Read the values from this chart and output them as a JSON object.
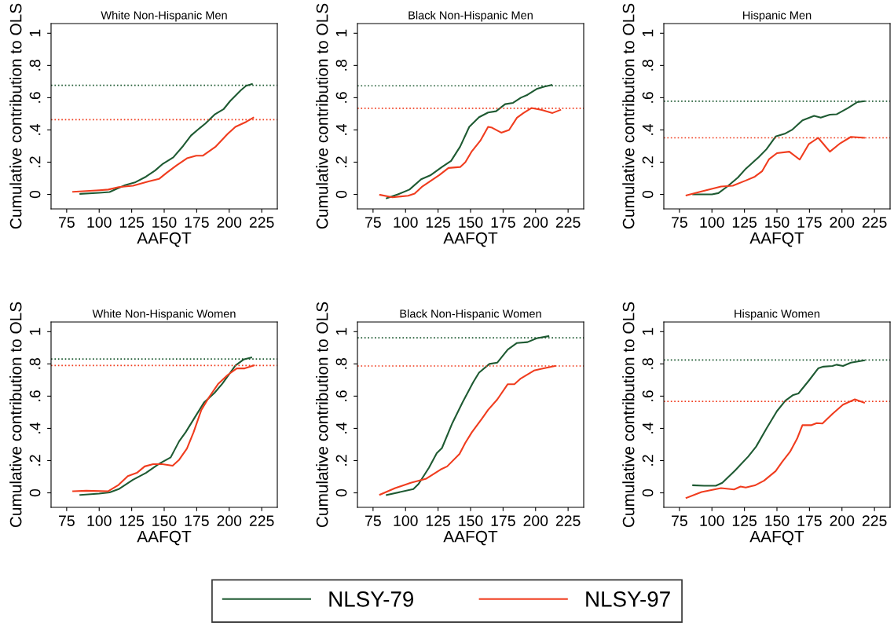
{
  "chart_data": [
    {
      "type": "line",
      "legend": "bottom",
      "title": "White Non-Hispanic Men",
      "xlabel": "AAFQT",
      "ylabel": "Cumulative contribution to OLS",
      "xlim": [
        63,
        237
      ],
      "ylim": [
        -0.09,
        1.06
      ],
      "xticks": [
        75,
        100,
        125,
        150,
        175,
        200,
        225
      ],
      "yticks": [
        {
          "value": 0,
          "label": "0"
        },
        {
          "value": 0.2,
          "label": ".2"
        },
        {
          "value": 0.4,
          "label": ".4"
        },
        {
          "value": 0.6,
          "label": ".6"
        },
        {
          "value": 0.8,
          "label": ".8"
        },
        {
          "value": 1,
          "label": "1"
        }
      ],
      "grid": false,
      "series": [
        {
          "name": "NLSY-79",
          "color": "#1e5a32",
          "x": [
            85.5,
            100,
            108,
            114,
            120,
            128,
            136,
            143,
            149,
            157,
            164.5,
            170.6,
            175.6,
            181.7,
            188.7,
            195.8,
            200.8,
            208.9,
            213,
            217.5
          ],
          "values": [
            0.003,
            0.01,
            0.015,
            0.037,
            0.057,
            0.076,
            0.11,
            0.148,
            0.19,
            0.23,
            0.3,
            0.365,
            0.4,
            0.44,
            0.495,
            0.53,
            0.58,
            0.646,
            0.674,
            0.685
          ]
        },
        {
          "name": "NLSY-97",
          "color": "#f03c1e",
          "x": [
            80,
            100,
            107,
            115,
            126,
            138,
            146,
            152,
            159.5,
            167.5,
            174.6,
            179.6,
            189.7,
            198.8,
            204.8,
            213,
            218.5
          ],
          "values": [
            0.016,
            0.026,
            0.03,
            0.045,
            0.054,
            0.08,
            0.096,
            0.135,
            0.18,
            0.224,
            0.24,
            0.24,
            0.297,
            0.375,
            0.419,
            0.45,
            0.476
          ]
        }
      ],
      "ref_lines": [
        {
          "axis": "y",
          "value": 0.677,
          "color": "#1e5a32",
          "line_style": "dotted"
        },
        {
          "axis": "y",
          "value": 0.464,
          "color": "#f03c1e",
          "line_style": "dotted"
        }
      ]
    },
    {
      "type": "line",
      "legend": "bottom",
      "title": "Black Non-Hispanic Men",
      "xlabel": "AAFQT",
      "ylabel": "Cumulative contribution to OLS",
      "xlim": [
        63,
        237
      ],
      "ylim": [
        -0.09,
        1.06
      ],
      "xticks": [
        75,
        100,
        125,
        150,
        175,
        200,
        225
      ],
      "yticks": [
        {
          "value": 0,
          "label": "0"
        },
        {
          "value": 0.2,
          "label": ".2"
        },
        {
          "value": 0.4,
          "label": ".4"
        },
        {
          "value": 0.6,
          "label": ".6"
        },
        {
          "value": 0.8,
          "label": ".8"
        },
        {
          "value": 1,
          "label": "1"
        }
      ],
      "grid": false,
      "series": [
        {
          "name": "NLSY-79",
          "color": "#1e5a32",
          "x": [
            85.5,
            94,
            103,
            112,
            119,
            128,
            135,
            142,
            149,
            156.5,
            163.5,
            169.6,
            176.6,
            182.7,
            188.7,
            193.8,
            200.8,
            206.9,
            212.3
          ],
          "values": [
            -0.024,
            0.0,
            0.03,
            0.094,
            0.118,
            0.17,
            0.208,
            0.297,
            0.419,
            0.479,
            0.508,
            0.516,
            0.56,
            0.568,
            0.6,
            0.618,
            0.654,
            0.669,
            0.679
          ]
        },
        {
          "name": "NLSY-97",
          "color": "#f03c1e",
          "x": [
            80.4,
            90,
            102,
            107,
            113,
            126,
            133,
            142,
            146,
            151,
            157.5,
            163.5,
            166.5,
            173.6,
            179.6,
            185.7,
            190.7,
            196.8,
            204.8,
            213,
            219
          ],
          "values": [
            -0.003,
            -0.018,
            -0.008,
            0.005,
            0.05,
            0.12,
            0.164,
            0.17,
            0.2,
            0.268,
            0.333,
            0.419,
            0.414,
            0.383,
            0.4,
            0.476,
            0.505,
            0.536,
            0.524,
            0.505,
            0.524
          ]
        }
      ],
      "ref_lines": [
        {
          "axis": "y",
          "value": 0.674,
          "color": "#1e5a32",
          "line_style": "dotted"
        },
        {
          "axis": "y",
          "value": 0.534,
          "color": "#f03c1e",
          "line_style": "dotted"
        }
      ]
    },
    {
      "type": "line",
      "legend": "bottom",
      "title": "Hispanic Men",
      "xlabel": "AAFQT",
      "ylabel": "Cumulative contribution to OLS",
      "xlim": [
        63,
        237
      ],
      "ylim": [
        -0.09,
        1.06
      ],
      "xticks": [
        75,
        100,
        125,
        150,
        175,
        200,
        225
      ],
      "yticks": [
        {
          "value": 0,
          "label": "0"
        },
        {
          "value": 0.2,
          "label": ".2"
        },
        {
          "value": 0.4,
          "label": ".4"
        },
        {
          "value": 0.6,
          "label": ".6"
        },
        {
          "value": 0.8,
          "label": ".8"
        },
        {
          "value": 1,
          "label": "1"
        }
      ],
      "grid": false,
      "series": [
        {
          "name": "NLSY-79",
          "color": "#1e5a32",
          "x": [
            85.5,
            100,
            105,
            112,
            120,
            126,
            136,
            142,
            149,
            156.5,
            161.5,
            169.6,
            178.6,
            183.7,
            190.7,
            195.8,
            204.8,
            211.9,
            217
          ],
          "values": [
            0.0,
            0.0,
            0.008,
            0.05,
            0.105,
            0.159,
            0.232,
            0.281,
            0.359,
            0.378,
            0.4,
            0.459,
            0.487,
            0.476,
            0.495,
            0.497,
            0.537,
            0.573,
            0.578
          ]
        },
        {
          "name": "NLSY-97",
          "color": "#f03c1e",
          "x": [
            80.4,
            92,
            107,
            116,
            126,
            133,
            138.5,
            144,
            150,
            159.5,
            167.5,
            174.6,
            181.7,
            185.7,
            190.7,
            198.8,
            206.9,
            217
          ],
          "values": [
            -0.006,
            0.018,
            0.049,
            0.054,
            0.086,
            0.11,
            0.143,
            0.219,
            0.256,
            0.265,
            0.216,
            0.313,
            0.351,
            0.313,
            0.265,
            0.318,
            0.357,
            0.351
          ]
        }
      ],
      "ref_lines": [
        {
          "axis": "y",
          "value": 0.578,
          "color": "#1e5a32",
          "line_style": "dotted"
        },
        {
          "axis": "y",
          "value": 0.351,
          "color": "#f03c1e",
          "line_style": "dotted"
        }
      ]
    },
    {
      "type": "line",
      "legend": "bottom",
      "title": "White Non-Hispanic Women",
      "xlabel": "AAFQT",
      "ylabel": "Cumulative contribution to OLS",
      "xlim": [
        63,
        237
      ],
      "ylim": [
        -0.09,
        1.06
      ],
      "xticks": [
        75,
        100,
        125,
        150,
        175,
        200,
        225
      ],
      "yticks": [
        {
          "value": 0,
          "label": "0"
        },
        {
          "value": 0.2,
          "label": ".2"
        },
        {
          "value": 0.4,
          "label": ".4"
        },
        {
          "value": 0.6,
          "label": ".6"
        },
        {
          "value": 0.8,
          "label": ".8"
        },
        {
          "value": 1,
          "label": "1"
        }
      ],
      "grid": false,
      "series": [
        {
          "name": "NLSY-79",
          "color": "#1e5a32",
          "x": [
            85.5,
            100,
            108,
            115,
            126,
            136,
            146,
            155,
            161.5,
            166.5,
            174.6,
            180.6,
            188.7,
            194.8,
            204.8,
            211,
            217
          ],
          "values": [
            -0.013,
            -0.005,
            0.003,
            0.023,
            0.081,
            0.124,
            0.18,
            0.22,
            0.32,
            0.376,
            0.482,
            0.56,
            0.62,
            0.678,
            0.79,
            0.827,
            0.839
          ]
        },
        {
          "name": "NLSY-97",
          "color": "#f03c1e",
          "x": [
            80,
            90,
            107,
            115,
            122,
            129,
            135,
            141.5,
            148.6,
            156.5,
            161.5,
            167.5,
            172.6,
            178.6,
            184.7,
            191.7,
            198.8,
            205.8,
            211.9,
            219
          ],
          "values": [
            0.01,
            0.013,
            0.01,
            0.05,
            0.104,
            0.124,
            0.164,
            0.178,
            0.178,
            0.168,
            0.205,
            0.275,
            0.376,
            0.515,
            0.596,
            0.678,
            0.731,
            0.772,
            0.772,
            0.79
          ]
        }
      ],
      "ref_lines": [
        {
          "axis": "y",
          "value": 0.83,
          "color": "#1e5a32",
          "line_style": "dotted"
        },
        {
          "axis": "y",
          "value": 0.79,
          "color": "#f03c1e",
          "line_style": "dotted"
        }
      ]
    },
    {
      "type": "line",
      "legend": "bottom",
      "title": "Black Non-Hispanic Women",
      "xlabel": "AAFQT",
      "ylabel": "Cumulative contribution to OLS",
      "xlim": [
        63,
        237
      ],
      "ylim": [
        -0.09,
        1.06
      ],
      "xticks": [
        75,
        100,
        125,
        150,
        175,
        200,
        225
      ],
      "yticks": [
        {
          "value": 0,
          "label": "0"
        },
        {
          "value": 0.2,
          "label": ".2"
        },
        {
          "value": 0.4,
          "label": ".4"
        },
        {
          "value": 0.6,
          "label": ".6"
        },
        {
          "value": 0.8,
          "label": ".8"
        },
        {
          "value": 1,
          "label": "1"
        }
      ],
      "grid": false,
      "series": [
        {
          "name": "NLSY-79",
          "color": "#1e5a32",
          "x": [
            85.5,
            106,
            110,
            118,
            124,
            128,
            136,
            144,
            152,
            156.5,
            164.5,
            170.6,
            178.6,
            185.7,
            193.8,
            200.8,
            209.9
          ],
          "values": [
            -0.013,
            0.023,
            0.055,
            0.156,
            0.246,
            0.278,
            0.433,
            0.564,
            0.686,
            0.746,
            0.8,
            0.808,
            0.889,
            0.93,
            0.935,
            0.959,
            0.972
          ]
        },
        {
          "name": "NLSY-97",
          "color": "#f03c1e",
          "x": [
            80.4,
            92,
            104,
            116,
            127,
            132,
            141.5,
            146,
            151,
            158.5,
            163.5,
            170.6,
            178.6,
            183.7,
            188.7,
            198.8,
            204.8,
            215
          ],
          "values": [
            -0.011,
            0.029,
            0.062,
            0.088,
            0.145,
            0.164,
            0.241,
            0.311,
            0.376,
            0.458,
            0.515,
            0.58,
            0.674,
            0.674,
            0.71,
            0.759,
            0.77,
            0.787
          ]
        }
      ],
      "ref_lines": [
        {
          "axis": "y",
          "value": 0.962,
          "color": "#1e5a32",
          "line_style": "dotted"
        },
        {
          "axis": "y",
          "value": 0.787,
          "color": "#f03c1e",
          "line_style": "dotted"
        }
      ]
    },
    {
      "type": "line",
      "title": "Hispanic Women",
      "xlabel": "AAFQT",
      "ylabel": "Cumulative contribution to OLS",
      "xlim": [
        63,
        237
      ],
      "ylim": [
        -0.09,
        1.06
      ],
      "xticks": [
        75,
        100,
        125,
        150,
        175,
        200,
        225
      ],
      "yticks": [
        {
          "value": 0,
          "label": "0"
        },
        {
          "value": 0.2,
          "label": ".2"
        },
        {
          "value": 0.4,
          "label": ".4"
        },
        {
          "value": 0.6,
          "label": ".6"
        },
        {
          "value": 0.8,
          "label": ".8"
        },
        {
          "value": 1,
          "label": "1"
        }
      ],
      "grid": false,
      "legend": "bottom",
      "series": [
        {
          "name": "NLSY-79",
          "color": "#1e5a32",
          "x": [
            85.5,
            94,
            103,
            108,
            118,
            128,
            134,
            142,
            150,
            156.5,
            162.5,
            166.5,
            174.6,
            181.7,
            185.7,
            192.7,
            195.8,
            200.8,
            206.9,
            217
          ],
          "values": [
            0.047,
            0.044,
            0.044,
            0.062,
            0.14,
            0.226,
            0.287,
            0.4,
            0.507,
            0.572,
            0.607,
            0.616,
            0.697,
            0.772,
            0.783,
            0.787,
            0.795,
            0.787,
            0.808,
            0.822
          ]
        },
        {
          "name": "NLSY-97",
          "color": "#f03c1e",
          "x": [
            80.4,
            92,
            107,
            117,
            122,
            126,
            133,
            140,
            149,
            154,
            160,
            165.5,
            169.6,
            176.6,
            180.6,
            185,
            192.7,
            200.8,
            209.9,
            217
          ],
          "values": [
            -0.031,
            0.005,
            0.029,
            0.021,
            0.039,
            0.033,
            0.046,
            0.075,
            0.135,
            0.192,
            0.254,
            0.336,
            0.42,
            0.42,
            0.433,
            0.43,
            0.49,
            0.547,
            0.58,
            0.56
          ]
        }
      ],
      "ref_lines": [
        {
          "axis": "y",
          "value": 0.824,
          "color": "#1e5a32",
          "line_style": "dotted"
        },
        {
          "axis": "y",
          "value": 0.567,
          "color": "#f03c1e",
          "line_style": "dotted"
        }
      ]
    }
  ]
}
